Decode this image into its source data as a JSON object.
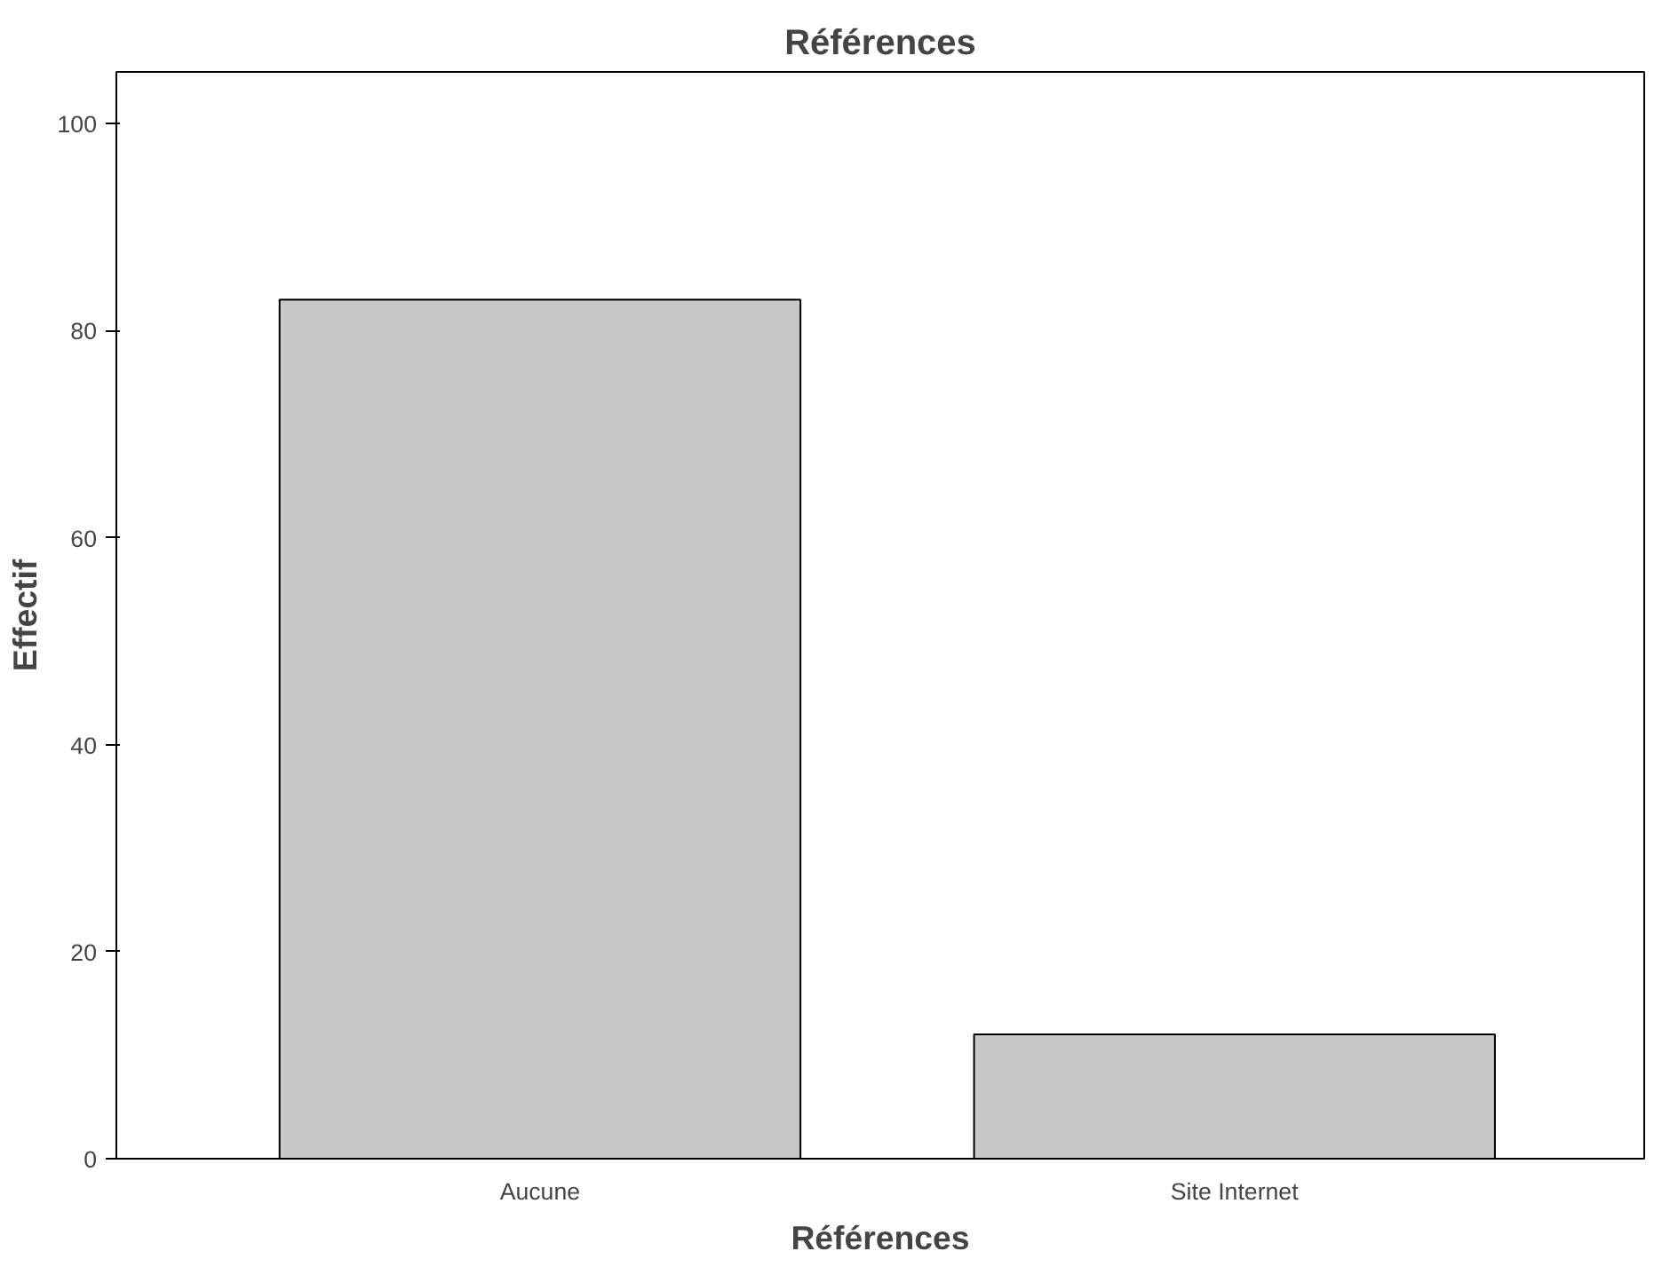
{
  "chart_data": {
    "type": "bar",
    "title": "Références",
    "xlabel": "Références",
    "ylabel": "Effectif",
    "categories": [
      "Aucune",
      "Site Internet"
    ],
    "values": [
      83,
      12
    ],
    "color": "#c8c8c8",
    "ylim": [
      0,
      105
    ],
    "yticks": [
      0,
      20,
      40,
      60,
      80,
      100
    ],
    "grid": false
  }
}
